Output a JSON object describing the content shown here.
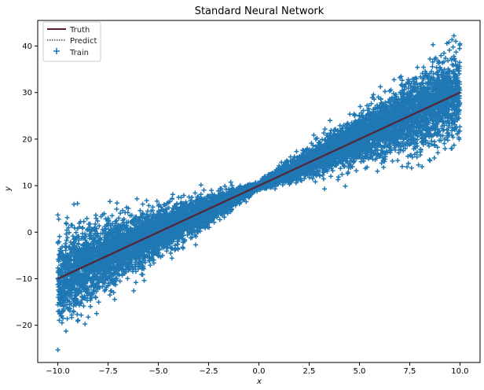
{
  "chart_data": {
    "type": "scatter",
    "title": "Standard Neural Network",
    "xlabel": "x",
    "ylabel": "y",
    "xlim": [
      -11,
      11
    ],
    "ylim": [
      -28,
      45.5
    ],
    "xticks": [
      -10.0,
      -7.5,
      -5.0,
      -2.5,
      0.0,
      2.5,
      5.0,
      7.5,
      10.0
    ],
    "xtick_labels": [
      "−10.0",
      "−7.5",
      "−5.0",
      "−2.5",
      "0.0",
      "2.5",
      "5.0",
      "7.5",
      "10.0"
    ],
    "yticks": [
      -20,
      -10,
      0,
      10,
      20,
      30,
      40
    ],
    "ytick_labels": [
      "−20",
      "−10",
      "0",
      "10",
      "20",
      "30",
      "40"
    ],
    "grid": false,
    "legend": {
      "position": "top-left",
      "entries": [
        {
          "label": "Truth",
          "style": "line",
          "color": "#5c1a2e"
        },
        {
          "label": "Predict",
          "style": "dotted-line",
          "color": "#404040"
        },
        {
          "label": "Train",
          "style": "plus-marker",
          "color": "#1f77b4"
        }
      ]
    },
    "series": [
      {
        "name": "Truth",
        "kind": "line",
        "x": [
          -10,
          10
        ],
        "y": [
          -10,
          30
        ],
        "color": "#5c1a2e"
      },
      {
        "name": "Predict",
        "kind": "line",
        "x": [
          -10,
          10
        ],
        "y": [
          -10,
          30
        ],
        "color": "#404040"
      },
      {
        "name": "Train",
        "kind": "scatter",
        "marker": "+",
        "color": "#1f77b4",
        "count": 10000,
        "x_range": [
          -10,
          10
        ],
        "relationship": "y = 2x + 10 with noise growing as |x| grows",
        "sample_points": [
          {
            "x": -10.0,
            "y": -25.3
          },
          {
            "x": -10.0,
            "y": 3.7
          },
          {
            "x": -9.8,
            "y": -18.0
          },
          {
            "x": -9.2,
            "y": 6.0
          },
          {
            "x": -7.5,
            "y": 3.0
          },
          {
            "x": -5.0,
            "y": 0.0
          },
          {
            "x": 0.0,
            "y": 10.0
          },
          {
            "x": 5.0,
            "y": 20.0
          },
          {
            "x": 9.7,
            "y": 42.2
          },
          {
            "x": 10.0,
            "y": 40.5
          },
          {
            "x": 9.6,
            "y": 18.0
          }
        ]
      }
    ]
  }
}
